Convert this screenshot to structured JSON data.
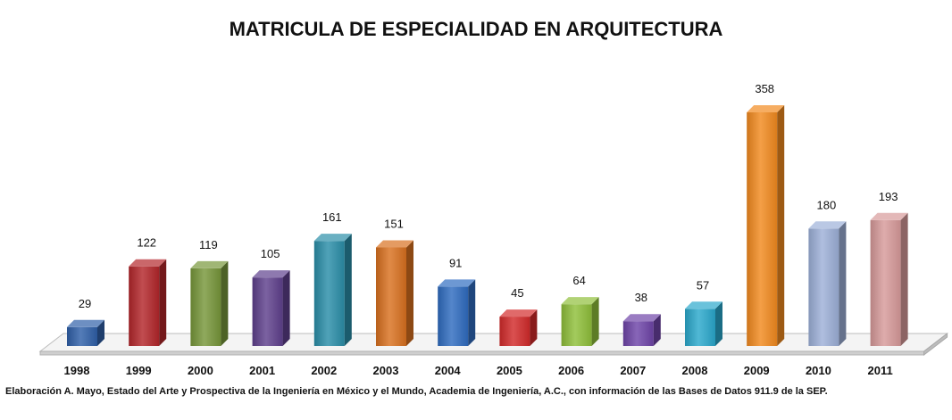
{
  "chart_data": {
    "type": "bar",
    "title": "MATRICULA DE ESPECIALIDAD EN ARQUITECTURA",
    "categories": [
      "1998",
      "1999",
      "2000",
      "2001",
      "2002",
      "2003",
      "2004",
      "2005",
      "2006",
      "2007",
      "2008",
      "2009",
      "2010",
      "2011"
    ],
    "values": [
      29,
      122,
      119,
      105,
      161,
      151,
      91,
      45,
      64,
      38,
      57,
      358,
      180,
      193
    ],
    "colors": [
      "#2f5fa8",
      "#b3262a",
      "#77963a",
      "#5e3f8c",
      "#2a8ea8",
      "#d9701f",
      "#2f6cc0",
      "#d22a2a",
      "#8fbf3a",
      "#6e44a8",
      "#2aa8cc",
      "#f28a1e",
      "#9db0d8",
      "#d79a9a"
    ],
    "xlabel": "",
    "ylabel": "",
    "ylim": [
      0,
      358
    ],
    "grid": false,
    "legend": "none",
    "source": "Elaboración A. Mayo, Estado del Arte y Prospectiva de la Ingeniería en México y el Mundo, Academia de Ingeniería, A.C., con información de las Bases de Datos  911.9 de la SEP."
  }
}
